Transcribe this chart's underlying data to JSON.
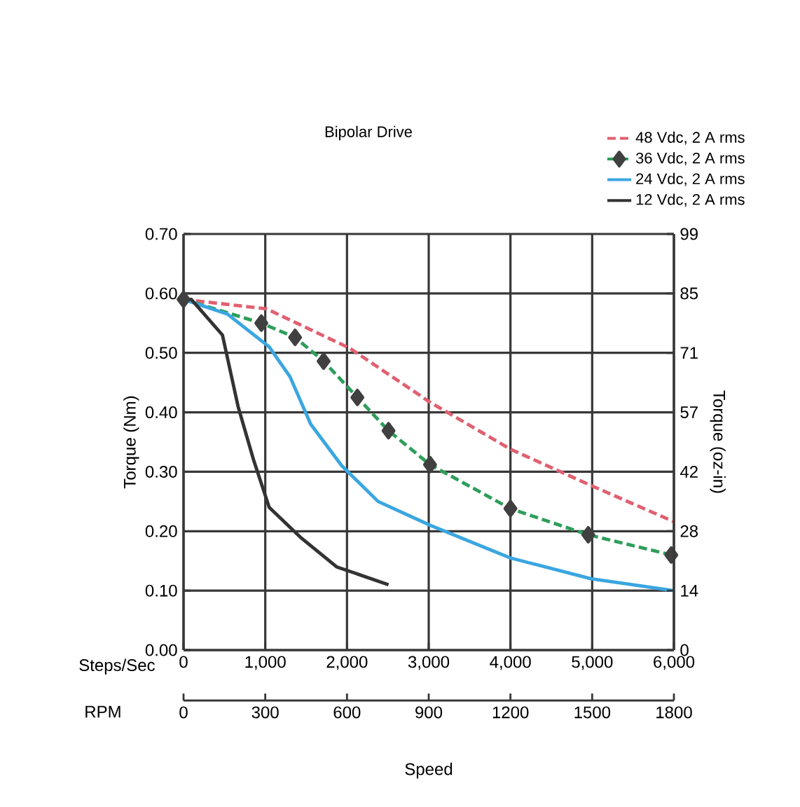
{
  "chart_data": {
    "type": "line",
    "xlabel": "Steps/Sec",
    "x2label": "RPM",
    "ylabel": "Torque (Nm)",
    "y2label": "Torque (oz-in)",
    "legend_title": "Bipolar Drive",
    "annotations": [
      "Speed"
    ],
    "xlim": [
      0,
      6000
    ],
    "xticks": [
      0,
      {
        "value": 1000,
        "label": "1,000"
      },
      {
        "value": 2000,
        "label": "2,000"
      },
      {
        "value": 3000,
        "label": "3,000"
      },
      {
        "value": 4000,
        "label": "4,000"
      },
      {
        "value": 5000,
        "label": "5,000"
      },
      {
        "value": 6000,
        "label": "6,000"
      }
    ],
    "x2lim": [
      0,
      1800
    ],
    "x2ticks": [
      0,
      300,
      600,
      900,
      1200,
      1500,
      1800
    ],
    "ylim": [
      0,
      0.7
    ],
    "yticks": [
      {
        "value": 0,
        "label": "0.00"
      },
      {
        "value": 0.1,
        "label": "0.10"
      },
      {
        "value": 0.2,
        "label": "0.20"
      },
      {
        "value": 0.3,
        "label": "0.30"
      },
      {
        "value": 0.4,
        "label": "0.40"
      },
      {
        "value": 0.5,
        "label": "0.50"
      },
      {
        "value": 0.6,
        "label": "0.60"
      },
      {
        "value": 0.7,
        "label": "0.70"
      }
    ],
    "y2lim": [
      0,
      99
    ],
    "y2ticks": [
      0,
      {
        "value": 14.14,
        "label": "14"
      },
      {
        "value": 28.29,
        "label": "28"
      },
      {
        "value": 42.43,
        "label": "42"
      },
      {
        "value": 56.57,
        "label": "57"
      },
      {
        "value": 70.71,
        "label": "71"
      },
      {
        "value": 84.86,
        "label": "85"
      },
      99
    ],
    "grid": true,
    "legend": "top right",
    "series": [
      {
        "name": "48 Vdc, 2 A rms",
        "color": "#e06070",
        "line_style": "dashed",
        "x": [
          0,
          1016,
          2032,
          3016,
          4000,
          4984,
          6000
        ],
        "values": [
          0.59,
          0.574,
          0.508,
          0.417,
          0.338,
          0.277,
          0.216
        ]
      },
      {
        "name": "36 Vdc, 2 A rms",
        "color": "#2e9e5a",
        "line_style": "dashed",
        "marker": "diamond",
        "x": [
          0,
          952,
          1365,
          1714,
          2127,
          2508,
          3016,
          4000,
          4952,
          5968
        ],
        "values": [
          0.59,
          0.55,
          0.526,
          0.486,
          0.425,
          0.369,
          0.312,
          0.238,
          0.194,
          0.16
        ]
      },
      {
        "name": "24 Vdc, 2 A rms",
        "color": "#3aa6e0",
        "line_style": "solid",
        "x": [
          0,
          540,
          1048,
          1302,
          1556,
          1937,
          2381,
          3016,
          4000,
          4984,
          6000
        ],
        "values": [
          0.59,
          0.565,
          0.51,
          0.46,
          0.38,
          0.31,
          0.25,
          0.21,
          0.155,
          0.12,
          0.1
        ]
      },
      {
        "name": "12 Vdc, 2 A rms",
        "color": "#333333",
        "line_style": "solid",
        "x": [
          0,
          95,
          476,
          667,
          857,
          1048,
          1429,
          1873,
          2508
        ],
        "values": [
          0.59,
          0.59,
          0.53,
          0.41,
          0.32,
          0.24,
          0.19,
          0.14,
          0.11
        ]
      }
    ]
  }
}
